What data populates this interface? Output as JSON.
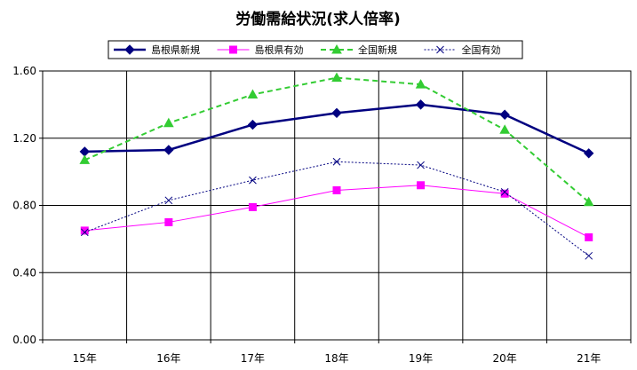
{
  "chart_data": {
    "type": "line",
    "title": "労働需給状況(求人倍率)",
    "categories": [
      "15年",
      "16年",
      "17年",
      "18年",
      "19年",
      "20年",
      "21年"
    ],
    "y_ticks": [
      "0.00",
      "0.40",
      "0.80",
      "1.20",
      "1.60"
    ],
    "ylim": [
      0,
      1.6
    ],
    "grid": true,
    "legend_position": "top",
    "series": [
      {
        "name": "島根県新規",
        "values": [
          1.12,
          1.13,
          1.28,
          1.35,
          1.4,
          1.34,
          1.11
        ],
        "color": "#000080",
        "dash": "",
        "marker": "diamond",
        "width": 2.5
      },
      {
        "name": "島根県有効",
        "values": [
          0.65,
          0.7,
          0.79,
          0.89,
          0.92,
          0.87,
          0.61
        ],
        "color": "#ff00ff",
        "dash": "",
        "marker": "square",
        "width": 1
      },
      {
        "name": "全国新規",
        "values": [
          1.07,
          1.29,
          1.46,
          1.56,
          1.52,
          1.25,
          0.82
        ],
        "color": "#33cc33",
        "dash": "6,4",
        "marker": "triangle",
        "width": 2
      },
      {
        "name": "全国有効",
        "values": [
          0.64,
          0.83,
          0.95,
          1.06,
          1.04,
          0.88,
          0.5
        ],
        "color": "#000080",
        "dash": "2,2",
        "marker": "x",
        "width": 1
      }
    ]
  }
}
